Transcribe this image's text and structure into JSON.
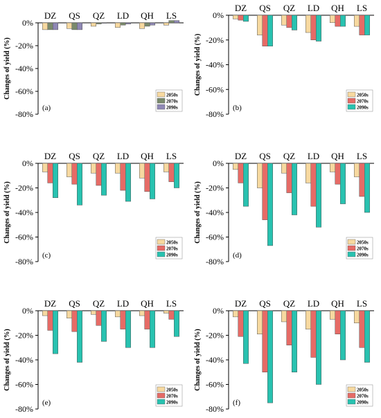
{
  "figure": {
    "colors": {
      "y2050": "#f7d9a0",
      "y2070": "#e66b66",
      "y2090": "#28c2b0",
      "y2070_alt": "#7a8a6c",
      "y2090_alt": "#8f88b5",
      "axis": "#000000"
    }
  },
  "chart_data": [
    {
      "type": "bar",
      "panel_label": "(a)",
      "categories": [
        "DZ",
        "QS",
        "QZ",
        "LD",
        "QH",
        "LS"
      ],
      "ylabel": "Changes of yield (%)",
      "yticks": [
        "0%",
        "-20%",
        "-40%",
        "-60%",
        "-80%"
      ],
      "ylim": [
        -80,
        0
      ],
      "legend_position": "bottom-right",
      "series": [
        {
          "name": "2050s",
          "color": "#f7d9a0",
          "values": [
            -6,
            -5,
            -3,
            -4,
            -5,
            -2
          ]
        },
        {
          "name": "2070s",
          "color": "#7a8a6c",
          "values": [
            -6,
            -6,
            -1,
            -2,
            -3,
            2
          ]
        },
        {
          "name": "2090s",
          "color": "#8f88b5",
          "values": [
            -6,
            -6,
            0,
            -1,
            -2,
            2
          ]
        }
      ]
    },
    {
      "type": "bar",
      "panel_label": "(b)",
      "categories": [
        "DZ",
        "QS",
        "QZ",
        "LD",
        "QH",
        "LS"
      ],
      "ylabel": "Changes of yield (%)",
      "yticks": [
        "0%",
        "-20%",
        "-40%",
        "-60%",
        "-80%"
      ],
      "ylim": [
        -80,
        0
      ],
      "legend_position": "bottom-right",
      "series": [
        {
          "name": "2050s",
          "color": "#f7d9a0",
          "values": [
            -3,
            -16,
            -8,
            -14,
            -6,
            -9
          ]
        },
        {
          "name": "2070s",
          "color": "#e66b66",
          "values": [
            -4,
            -25,
            -10,
            -20,
            -9,
            -16
          ]
        },
        {
          "name": "2090s",
          "color": "#28c2b0",
          "values": [
            -5,
            -25,
            -12,
            -21,
            -9,
            -16
          ]
        }
      ]
    },
    {
      "type": "bar",
      "panel_label": "(c)",
      "categories": [
        "DZ",
        "QS",
        "QZ",
        "LD",
        "QH",
        "LS"
      ],
      "ylabel": "Changes of yield (%)",
      "yticks": [
        "0%",
        "-20%",
        "-40%",
        "-60%",
        "-80%"
      ],
      "ylim": [
        -80,
        0
      ],
      "legend_position": "bottom-right",
      "series": [
        {
          "name": "2050s",
          "color": "#f7d9a0",
          "values": [
            -7,
            -11,
            -8,
            -8,
            -12,
            -7
          ]
        },
        {
          "name": "2070s",
          "color": "#e66b66",
          "values": [
            -16,
            -17,
            -18,
            -22,
            -23,
            -15
          ]
        },
        {
          "name": "2090s",
          "color": "#28c2b0",
          "values": [
            -28,
            -34,
            -26,
            -31,
            -29,
            -20
          ]
        }
      ]
    },
    {
      "type": "bar",
      "panel_label": "(d)",
      "categories": [
        "DZ",
        "QS",
        "QZ",
        "LD",
        "QH",
        "LS"
      ],
      "ylabel": "Changes of yield (%)",
      "yticks": [
        "0%",
        "-20%",
        "-40%",
        "-60%",
        "-80%"
      ],
      "ylim": [
        -80,
        0
      ],
      "legend_position": "bottom-right",
      "series": [
        {
          "name": "2050s",
          "color": "#f7d9a0",
          "values": [
            -5,
            -20,
            -8,
            -16,
            -7,
            -11
          ]
        },
        {
          "name": "2070s",
          "color": "#e66b66",
          "values": [
            -16,
            -46,
            -24,
            -35,
            -17,
            -27
          ]
        },
        {
          "name": "2090s",
          "color": "#28c2b0",
          "values": [
            -35,
            -67,
            -42,
            -52,
            -33,
            -40
          ]
        }
      ]
    },
    {
      "type": "bar",
      "panel_label": "(e)",
      "categories": [
        "DZ",
        "QS",
        "QZ",
        "LD",
        "QH",
        "LS"
      ],
      "ylabel": "Changes of yield (%)",
      "yticks": [
        "0%",
        "-20%",
        "-40%",
        "-60%",
        "-80%"
      ],
      "ylim": [
        -80,
        0
      ],
      "legend_position": "bottom-right",
      "series": [
        {
          "name": "2050s",
          "color": "#f7d9a0",
          "values": [
            -4,
            -6,
            -3,
            -5,
            -4,
            -2
          ]
        },
        {
          "name": "2070s",
          "color": "#e66b66",
          "values": [
            -16,
            -17,
            -12,
            -15,
            -15,
            -7
          ]
        },
        {
          "name": "2090s",
          "color": "#28c2b0",
          "values": [
            -35,
            -42,
            -25,
            -30,
            -30,
            -21
          ]
        }
      ]
    },
    {
      "type": "bar",
      "panel_label": "(f)",
      "categories": [
        "DZ",
        "QS",
        "QZ",
        "LD",
        "QH",
        "LS"
      ],
      "ylabel": "Changes of yield (%)",
      "yticks": [
        "0%",
        "-20%",
        "-40%",
        "-60%",
        "-80%"
      ],
      "ylim": [
        -80,
        0
      ],
      "legend_position": "bottom-right",
      "series": [
        {
          "name": "2050s",
          "color": "#f7d9a0",
          "values": [
            -5,
            -19,
            -9,
            -15,
            -7,
            -10
          ]
        },
        {
          "name": "2070s",
          "color": "#e66b66",
          "values": [
            -21,
            -50,
            -28,
            -38,
            -19,
            -30
          ]
        },
        {
          "name": "2090s",
          "color": "#28c2b0",
          "values": [
            -43,
            -75,
            -50,
            -60,
            -40,
            -42
          ]
        }
      ]
    }
  ]
}
